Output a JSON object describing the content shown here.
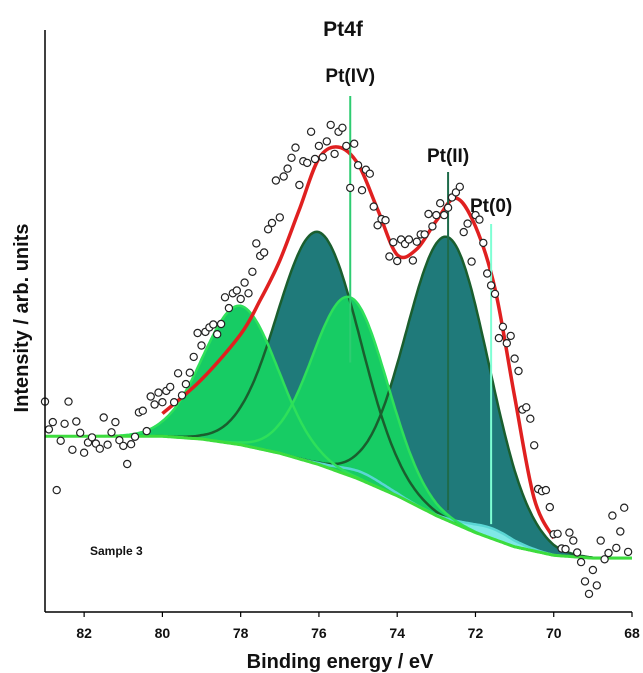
{
  "chart_data": {
    "type": "line",
    "title": "Pt4f",
    "xlabel": "Binding energy / eV",
    "ylabel": "Intensity / arb. units",
    "xlim": [
      83,
      68
    ],
    "ylim": [
      0,
      1
    ],
    "x_reversed": true,
    "xticks": [
      "82",
      "80",
      "78",
      "76",
      "74",
      "72",
      "70",
      "68"
    ],
    "sample_label": "Sample 3",
    "annotations": [
      {
        "label": "Pt(IV)",
        "x": 75.2,
        "color": "#2ecc71"
      },
      {
        "label": "Pt(II)",
        "x": 72.7,
        "color": "#1e6b4a"
      },
      {
        "label": "Pt(0)",
        "x": 71.6,
        "color": "#7fffd4"
      }
    ],
    "background": {
      "name": "",
      "x": [
        83,
        81,
        80,
        79,
        78,
        77,
        76,
        75,
        74,
        73,
        72,
        71,
        70,
        69,
        68
      ],
      "values": [
        0.31,
        0.31,
        0.31,
        0.305,
        0.295,
        0.28,
        0.26,
        0.235,
        0.205,
        0.17,
        0.14,
        0.115,
        0.1,
        0.095,
        0.095
      ]
    },
    "components": [
      {
        "name": "",
        "color": "#1f7a7a",
        "stroke": "#1a5e2e",
        "center": 72.7,
        "sigma": 1.05,
        "amp": 0.5
      },
      {
        "name": "",
        "color": "#1f7a7a",
        "stroke": "#1a5e2e",
        "center": 76.0,
        "sigma": 1.05,
        "amp": 0.41
      },
      {
        "name": "",
        "color": "#7fe8e6",
        "stroke": "#5ad6d4",
        "center": 71.6,
        "sigma": 0.6,
        "amp": 0.018
      },
      {
        "name": "",
        "color": "#7fe8e6",
        "stroke": "#5ad6d4",
        "center": 74.9,
        "sigma": 0.6,
        "amp": 0.014
      },
      {
        "name": "",
        "color": "#17cc64",
        "stroke": "#2ee05a",
        "center": 75.2,
        "sigma": 0.95,
        "amp": 0.315
      },
      {
        "name": "",
        "color": "#17cc64",
        "stroke": "#2ee05a",
        "center": 78.0,
        "sigma": 0.95,
        "amp": 0.245
      }
    ],
    "envelope": {
      "name": "",
      "color": "#e02020",
      "x": [
        80,
        79,
        78,
        77.5,
        77,
        76.5,
        76,
        75.5,
        75,
        74.5,
        74,
        73.5,
        73,
        72.5,
        72,
        71.5,
        71,
        70.5,
        70
      ],
      "values": [
        0.35,
        0.41,
        0.49,
        0.55,
        0.62,
        0.71,
        0.8,
        0.82,
        0.79,
        0.71,
        0.63,
        0.64,
        0.69,
        0.73,
        0.68,
        0.57,
        0.38,
        0.2,
        0.13
      ]
    },
    "scatter": {
      "name": "",
      "marker": "open circle",
      "x": [
        83.0,
        82.9,
        82.8,
        82.7,
        82.6,
        82.5,
        82.4,
        82.3,
        82.2,
        82.1,
        82.0,
        81.9,
        81.8,
        81.7,
        81.6,
        81.5,
        81.4,
        81.3,
        81.2,
        81.1,
        81.0,
        80.9,
        80.8,
        80.7,
        80.6,
        80.5,
        80.4,
        80.3,
        80.2,
        80.1,
        80.0,
        79.9,
        79.8,
        79.7,
        79.6,
        79.5,
        79.4,
        79.3,
        79.2,
        79.1,
        79.0,
        78.9,
        78.8,
        78.7,
        78.6,
        78.5,
        78.4,
        78.3,
        78.2,
        78.1,
        78.0,
        77.9,
        77.8,
        77.7,
        77.6,
        77.5,
        77.4,
        77.3,
        77.2,
        77.1,
        77.0,
        76.9,
        76.8,
        76.7,
        76.6,
        76.5,
        76.4,
        76.3,
        76.2,
        76.1,
        76.0,
        75.9,
        75.8,
        75.7,
        75.6,
        75.5,
        75.4,
        75.3,
        75.2,
        75.1,
        75.0,
        74.9,
        74.8,
        74.7,
        74.6,
        74.5,
        74.4,
        74.3,
        74.2,
        74.1,
        74.0,
        73.9,
        73.8,
        73.7,
        73.6,
        73.5,
        73.4,
        73.3,
        73.2,
        73.1,
        73.0,
        72.9,
        72.8,
        72.7,
        72.6,
        72.5,
        72.4,
        72.3,
        72.2,
        72.1,
        72.0,
        71.9,
        71.8,
        71.7,
        71.6,
        71.5,
        71.4,
        71.3,
        71.2,
        71.1,
        71.0,
        70.9,
        70.8,
        70.7,
        70.6,
        70.5,
        70.4,
        70.3,
        70.2,
        70.1,
        70.0,
        69.9,
        69.8,
        69.7,
        69.6,
        69.5,
        69.4,
        69.3,
        69.2,
        69.1,
        69.0,
        68.9,
        68.8,
        68.7,
        68.6,
        68.5,
        68.4,
        68.3,
        68.2,
        68.1
      ],
      "values": [
        0.371,
        0.322,
        0.335,
        0.215,
        0.302,
        0.332,
        0.371,
        0.286,
        0.336,
        0.316,
        0.281,
        0.299,
        0.308,
        0.297,
        0.288,
        0.343,
        0.295,
        0.317,
        0.335,
        0.303,
        0.293,
        0.261,
        0.296,
        0.309,
        0.352,
        0.355,
        0.319,
        0.38,
        0.366,
        0.387,
        0.37,
        0.39,
        0.397,
        0.37,
        0.421,
        0.382,
        0.402,
        0.422,
        0.45,
        0.492,
        0.47,
        0.494,
        0.502,
        0.507,
        0.49,
        0.508,
        0.555,
        0.536,
        0.562,
        0.567,
        0.552,
        0.581,
        0.562,
        0.6,
        0.65,
        0.628,
        0.634,
        0.675,
        0.686,
        0.761,
        0.696,
        0.768,
        0.782,
        0.801,
        0.819,
        0.753,
        0.795,
        0.792,
        0.847,
        0.799,
        0.822,
        0.802,
        0.83,
        0.859,
        0.808,
        0.847,
        0.854,
        0.822,
        0.748,
        0.826,
        0.788,
        0.744,
        0.78,
        0.773,
        0.715,
        0.682,
        0.693,
        0.691,
        0.627,
        0.652,
        0.619,
        0.657,
        0.649,
        0.657,
        0.62,
        0.653,
        0.666,
        0.666,
        0.702,
        0.68,
        0.7,
        0.721,
        0.7,
        0.713,
        0.731,
        0.74,
        0.75,
        0.67,
        0.685,
        0.618,
        0.7,
        0.692,
        0.651,
        0.597,
        0.576,
        0.561,
        0.483,
        0.503,
        0.474,
        0.487,
        0.447,
        0.425,
        0.357,
        0.361,
        0.341,
        0.294,
        0.217,
        0.213,
        0.215,
        0.185,
        0.137,
        0.138,
        0.112,
        0.111,
        0.14,
        0.126,
        0.105,
        0.088,
        0.054,
        0.032,
        0.074,
        0.047,
        0.126,
        0.093,
        0.104,
        0.17,
        0.113,
        0.142,
        0.184,
        0.106
      ]
    }
  }
}
